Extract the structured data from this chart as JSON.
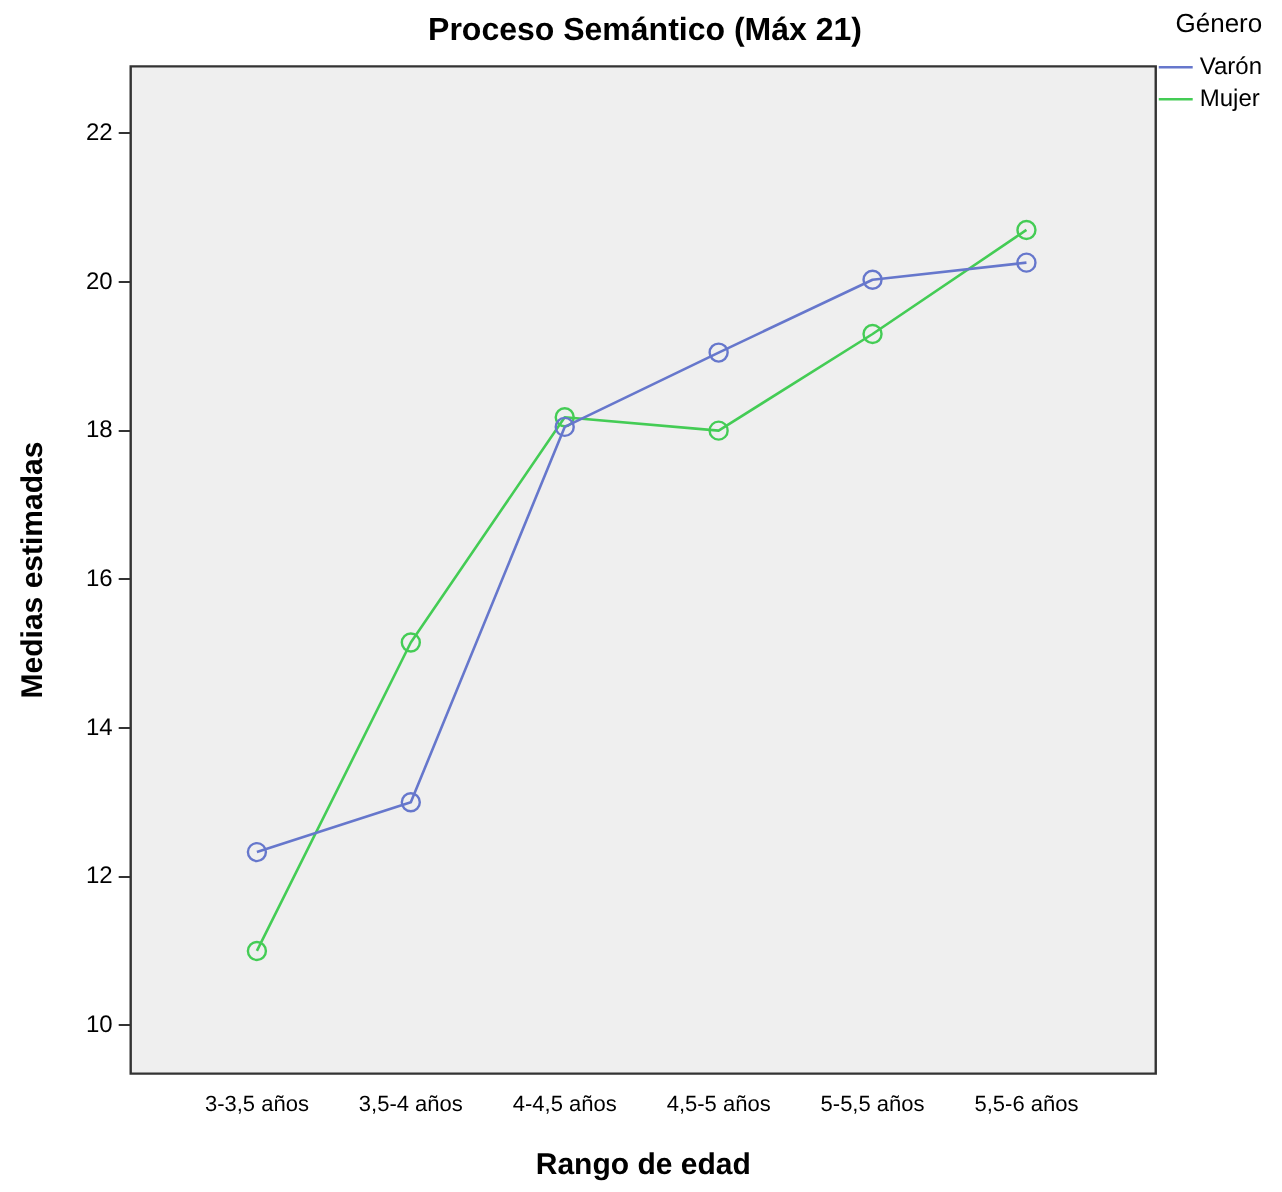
{
  "chart_data": {
    "type": "line",
    "title": "Proceso Semántico (Máx 21)",
    "xlabel": "Rango de edad",
    "ylabel": "Medias estimadas",
    "legend_title": "Género",
    "categories": [
      "3-3,5 años",
      "3,5-4 años",
      "4-4,5 años",
      "4,5-5 años",
      "5-5,5 años",
      "5,5-6 años"
    ],
    "series": [
      {
        "name": "Varón",
        "color": "#6677cc",
        "values": [
          12.33,
          13.0,
          18.05,
          19.05,
          20.03,
          20.26
        ]
      },
      {
        "name": "Mujer",
        "color": "#44cc55",
        "values": [
          11.0,
          15.15,
          18.18,
          18.0,
          19.3,
          20.7
        ]
      }
    ],
    "ylim": [
      9.35,
      22.9
    ],
    "yticks": [
      10,
      12,
      14,
      16,
      18,
      20,
      22
    ],
    "grid": false,
    "legend": "top right",
    "marker": "circle",
    "line_style": "solid"
  }
}
